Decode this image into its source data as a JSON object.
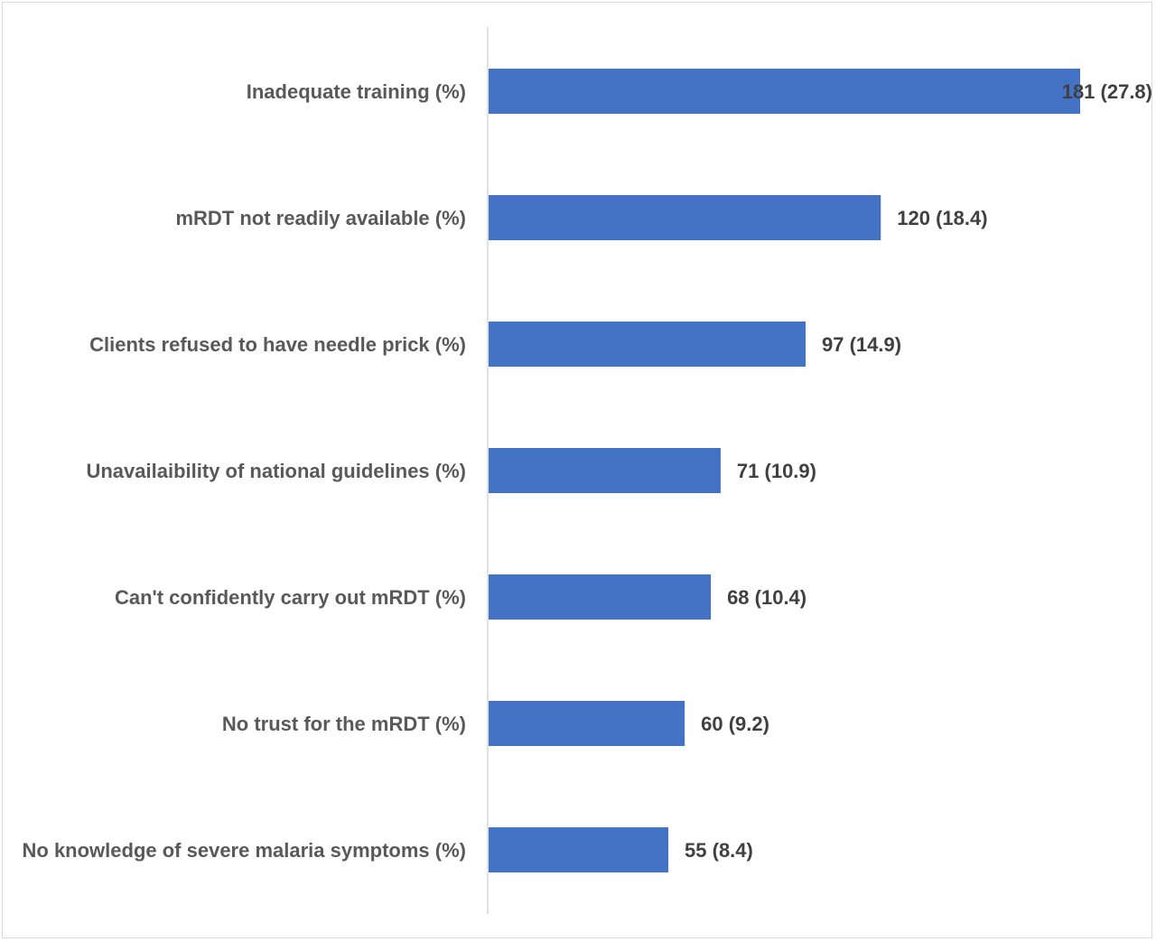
{
  "chart_data": {
    "type": "bar",
    "orientation": "horizontal",
    "title": "",
    "xlabel": "",
    "ylabel": "",
    "xlim": [
      0,
      181
    ],
    "grid": false,
    "legend": "none",
    "bar_color": "#4472C4",
    "categories": [
      "Inadequate training (%)",
      "mRDT not readily available (%)",
      "Clients refused to have needle prick (%)",
      "Unavailaibility of national guidelines (%)",
      "Can't confidently carry out mRDT (%)",
      "No trust for the mRDT (%)",
      "No knowledge of severe malaria symptoms (%)"
    ],
    "values": [
      181,
      120,
      97,
      71,
      68,
      60,
      55
    ],
    "percentages": [
      27.8,
      18.4,
      14.9,
      10.9,
      10.4,
      9.2,
      8.4
    ],
    "data_labels": [
      "181 (27.8)",
      "120 (18.4)",
      "97 (14.9)",
      "71 (10.9)",
      "68 (10.4)",
      "60 (9.2)",
      "55 (8.4)"
    ]
  }
}
